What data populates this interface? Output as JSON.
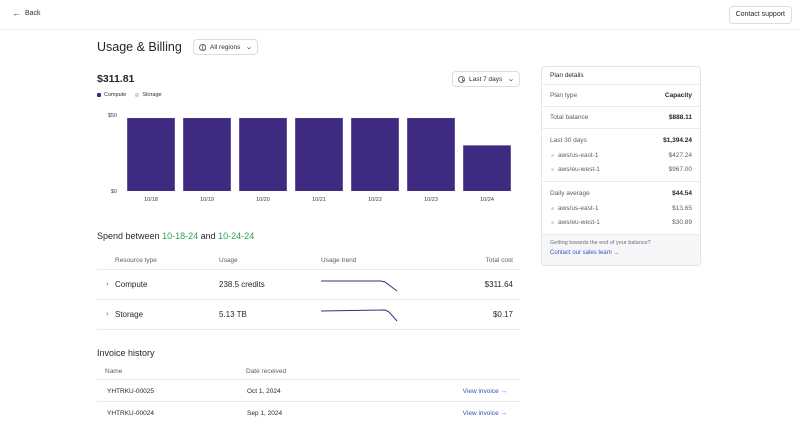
{
  "topbar": {
    "back_label": "Back",
    "support_label": "Contact support"
  },
  "header": {
    "title": "Usage & Billing",
    "region_label": "All regions"
  },
  "summary": {
    "total": "$311.81",
    "range_label": "Last 7 days"
  },
  "legend": [
    {
      "name": "Compute",
      "color": "#3f2a82"
    },
    {
      "name": "Storage",
      "color": "#d4d4da"
    }
  ],
  "chart_data": {
    "type": "bar",
    "categories": [
      "10/18",
      "10/19",
      "10/20",
      "10/21",
      "10/22",
      "10/23",
      "10/24"
    ],
    "series": [
      {
        "name": "Compute",
        "values": [
          48,
          48,
          48,
          48,
          48,
          48,
          30
        ]
      },
      {
        "name": "Storage",
        "values": [
          0,
          0,
          0,
          0,
          0,
          0,
          0
        ]
      }
    ],
    "yticks": [
      "$0",
      "$50"
    ],
    "ylim": [
      0,
      50
    ],
    "title": "",
    "xlabel": "",
    "ylabel": "",
    "grid": false,
    "legend": "top-left"
  },
  "spend": {
    "prefix": "Spend between",
    "start": "10-18-24",
    "joiner": "and",
    "end": "10-24-24"
  },
  "resources": {
    "headers": [
      "Resource type",
      "Usage",
      "Usage trend",
      "Total cost"
    ],
    "rows": [
      {
        "type": "Compute",
        "usage": "238.5 credits",
        "cost": "$311.64"
      },
      {
        "type": "Storage",
        "usage": "5.13 TB",
        "cost": "$0.17"
      }
    ]
  },
  "invoices": {
    "title": "Invoice history",
    "headers": [
      "Name",
      "Date received"
    ],
    "link_label": "View invoice →",
    "rows": [
      {
        "name": "YHTRKU-00025",
        "date": "Oct 1, 2024"
      },
      {
        "name": "YHTRKU-00024",
        "date": "Sep 1, 2024"
      }
    ]
  },
  "plan": {
    "title": "Plan details",
    "plan_type_label": "Plan type",
    "plan_type": "Capacity",
    "balance_label": "Total balance",
    "balance": "$888.11",
    "last30_label": "Last 30 days",
    "last30": "$1,394.24",
    "last30_regions": [
      {
        "name": "aws/us-east-1",
        "value": "$427.24"
      },
      {
        "name": "aws/eu-west-1",
        "value": "$967.00"
      }
    ],
    "daily_label": "Daily average",
    "daily": "$44.54",
    "daily_regions": [
      {
        "name": "aws/us-east-1",
        "value": "$13.65"
      },
      {
        "name": "aws/eu-west-1",
        "value": "$30.89"
      }
    ],
    "note": "Getting towards the end of your balance?",
    "sales_link": "Contact our sales team →"
  }
}
